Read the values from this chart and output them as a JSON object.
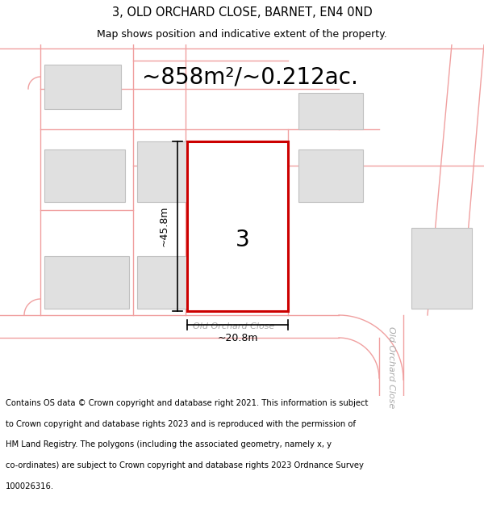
{
  "title": "3, OLD ORCHARD CLOSE, BARNET, EN4 0ND",
  "subtitle": "Map shows position and indicative extent of the property.",
  "area_label": "~858m²/~0.212ac.",
  "width_label": "~20.8m",
  "height_label": "~45.8m",
  "number_label": "3",
  "road_label_h": "Old Orchard Close",
  "road_label_v": "Old Orchard Close",
  "copyright_lines": [
    "Contains OS data © Crown copyright and database right 2021. This information is subject",
    "to Crown copyright and database rights 2023 and is reproduced with the permission of",
    "HM Land Registry. The polygons (including the associated geometry, namely x, y",
    "co-ordinates) are subject to Crown copyright and database rights 2023 Ordnance Survey",
    "100026316."
  ],
  "bg_color": "#ffffff",
  "map_bg_color": "#ffffff",
  "plot_edgecolor": "#cc0000",
  "road_line_color": "#f0a0a0",
  "building_color": "#e0e0e0",
  "building_edgecolor": "#c0c0c0",
  "dim_color": "#000000",
  "title_fontsize": 10.5,
  "subtitle_fontsize": 9,
  "area_fontsize": 20,
  "dim_fontsize": 9,
  "number_fontsize": 20,
  "road_fontsize": 8,
  "copyright_fontsize": 7.2
}
